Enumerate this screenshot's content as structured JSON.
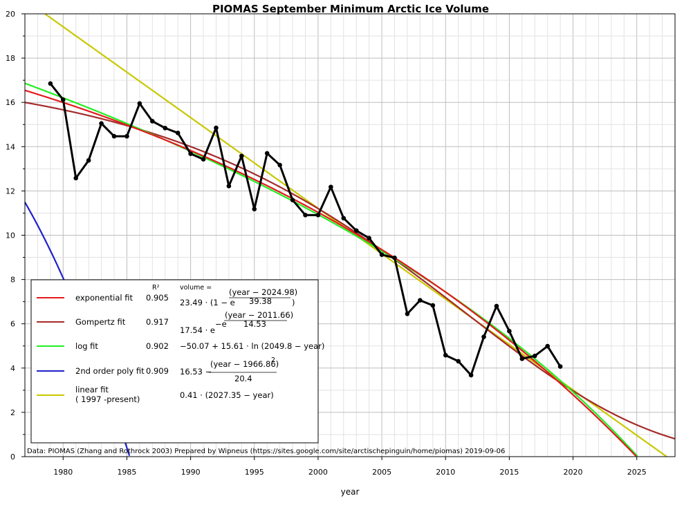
{
  "chart_data": {
    "type": "line",
    "title": "PIOMAS September Minimum Arctic Ice Volume",
    "xlabel": "year",
    "ylabel": "",
    "xlim": [
      1977,
      2028
    ],
    "ylim": [
      0,
      20
    ],
    "x_ticks": [
      1980,
      1985,
      1990,
      1995,
      2000,
      2005,
      2010,
      2015,
      2020,
      2025
    ],
    "y_ticks": [
      0,
      2,
      4,
      6,
      8,
      10,
      12,
      14,
      16,
      18,
      20
    ],
    "grid": true,
    "legend_position": "bottom-left",
    "series": [
      {
        "kind": "observed",
        "color": "#000000",
        "x": [
          1979,
          1980,
          1981,
          1982,
          1983,
          1984,
          1985,
          1986,
          1987,
          1988,
          1989,
          1990,
          1991,
          1992,
          1993,
          1994,
          1995,
          1996,
          1997,
          1998,
          1999,
          2000,
          2001,
          2002,
          2003,
          2004,
          2005,
          2006,
          2007,
          2008,
          2009,
          2010,
          2011,
          2012,
          2013,
          2014,
          2015,
          2016,
          2017,
          2018,
          2019
        ],
        "values": [
          16.85,
          16.12,
          12.58,
          13.38,
          15.05,
          14.47,
          14.47,
          15.95,
          15.15,
          14.84,
          14.62,
          13.68,
          13.43,
          14.85,
          12.22,
          13.58,
          11.18,
          13.7,
          13.17,
          11.59,
          10.91,
          10.91,
          12.18,
          10.77,
          10.21,
          9.87,
          9.12,
          8.98,
          6.45,
          7.06,
          6.83,
          4.58,
          4.31,
          3.68,
          5.41,
          6.8,
          5.67,
          4.42,
          4.55,
          4.99,
          4.07
        ]
      },
      {
        "name": "exponential fit",
        "color": "#e41a1c",
        "r2": "0.905",
        "formula": {
          "prefix": "23.49 · (1 − e",
          "numerator": "(year − 2024.98)",
          "denominator": "39.38",
          "suffix": ")"
        },
        "params": {
          "a": 23.49,
          "x0": 2024.98,
          "s": 39.38
        }
      },
      {
        "name": "Gompertz fit",
        "color": "#a52a2a",
        "r2": "0.917",
        "formula": {
          "prefix": "17.54 · e",
          "mid": "−e",
          "numerator": "(year − 2011.66)",
          "denominator": "14.53"
        },
        "params": {
          "a": 17.54,
          "x0": 2011.66,
          "s": 14.53
        }
      },
      {
        "name": "log fit",
        "color": "#22ee22",
        "r2": "0.902",
        "formula": {
          "text": "−50.07 + 15.61 · ln (2049.8 − year)"
        },
        "params": {
          "a": -50.07,
          "b": 15.61,
          "x0": 2049.8
        }
      },
      {
        "name": "2nd order poly fit",
        "color": "#1f1fcc",
        "r2": "0.909",
        "formula": {
          "prefix": "16.53 −",
          "numerator": "(year − 1966.86)",
          "power": "2",
          "denominator": "20.4"
        },
        "params": {
          "a": 16.53,
          "x0": 1966.86,
          "d": 20.4
        }
      },
      {
        "name": "linear fit",
        "name_line2": "( 1997 -present)",
        "color": "#c8c800",
        "r2": "",
        "formula": {
          "text": "0.41 · (2027.35 − year)"
        },
        "params": {
          "a": 0.41,
          "x0": 2027.35
        }
      }
    ]
  },
  "legend": {
    "r2_header": "R²",
    "formula_header": "volume ="
  },
  "credit": "Data: PIOMAS (Zhang and Rothrock 2003) Prepared by Wipneus (https://sites.google.com/site/arctischepinguin/home/piomas)     2019-09-06"
}
